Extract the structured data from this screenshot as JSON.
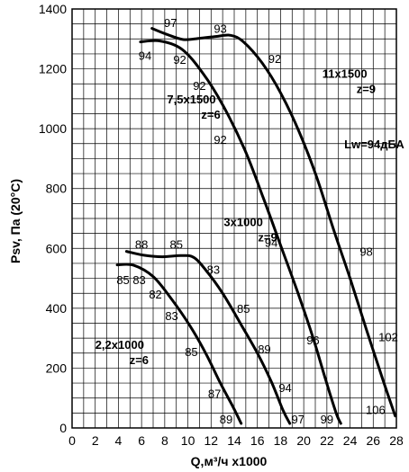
{
  "chart_data": {
    "type": "line",
    "xlabel": "Q,м³/ч x1000",
    "ylabel": "Psv, Па (20°C)",
    "xlim": [
      0,
      28
    ],
    "ylim": [
      0,
      1400
    ],
    "x_ticks": [
      0,
      2,
      4,
      6,
      8,
      10,
      12,
      14,
      16,
      18,
      20,
      22,
      24,
      26,
      28
    ],
    "y_ticks": [
      0,
      200,
      400,
      600,
      800,
      1000,
      1200,
      1400
    ],
    "x_tick_labels": [
      "0",
      "2",
      "4",
      "6",
      "8",
      "10",
      "12",
      "14",
      "16",
      "18",
      "20",
      "22",
      "24",
      "26",
      "28"
    ],
    "y_tick_labels": [
      "0",
      "200",
      "400",
      "600",
      "800",
      "1000",
      "1200",
      "1400"
    ],
    "grid": true,
    "series": [
      {
        "name": "2,2x1000 z=6",
        "label_lines": [
          "2,2x1000",
          "z=6"
        ],
        "label_pos": [
          2.0,
          265
        ],
        "points": [
          [
            3.9,
            545
          ],
          [
            5.3,
            544
          ],
          [
            7.0,
            506
          ],
          [
            8.6,
            430
          ],
          [
            10.2,
            340
          ],
          [
            11.6,
            245
          ],
          [
            12.8,
            150
          ],
          [
            13.9,
            70
          ],
          [
            14.6,
            15
          ]
        ],
        "noise_labels": [
          {
            "text": "85",
            "x": 4.4,
            "y": 495
          },
          {
            "text": "83",
            "x": 5.8,
            "y": 495
          },
          {
            "text": "82",
            "x": 7.2,
            "y": 447
          },
          {
            "text": "83",
            "x": 8.6,
            "y": 375
          },
          {
            "text": "85",
            "x": 10.3,
            "y": 255
          },
          {
            "text": "87",
            "x": 12.3,
            "y": 115
          },
          {
            "text": "89",
            "x": 13.3,
            "y": 30
          }
        ]
      },
      {
        "name": "3x1000 z=9",
        "label_lines": [
          "3x1000",
          "z=9"
        ],
        "label_pos": [
          13.1,
          675
        ],
        "points": [
          [
            4.7,
            590
          ],
          [
            6.2,
            577
          ],
          [
            7.8,
            572
          ],
          [
            9.4,
            576
          ],
          [
            10.5,
            570
          ],
          [
            11.6,
            525
          ],
          [
            13.0,
            450
          ],
          [
            14.6,
            345
          ],
          [
            16.0,
            250
          ],
          [
            17.2,
            155
          ],
          [
            18.2,
            60
          ],
          [
            18.8,
            15
          ]
        ],
        "noise_labels": [
          {
            "text": "88",
            "x": 6.0,
            "y": 615
          },
          {
            "text": "85",
            "x": 9.0,
            "y": 615
          },
          {
            "text": "83",
            "x": 12.2,
            "y": 530
          },
          {
            "text": "85",
            "x": 14.8,
            "y": 400
          },
          {
            "text": "89",
            "x": 16.6,
            "y": 265
          },
          {
            "text": "94",
            "x": 18.4,
            "y": 135
          },
          {
            "text": "97",
            "x": 19.5,
            "y": 30
          }
        ]
      },
      {
        "name": "7,5x1500 z=6",
        "label_lines": [
          "7,5x1500",
          "z=6"
        ],
        "label_pos": [
          8.2,
          1085
        ],
        "points": [
          [
            5.9,
            1290
          ],
          [
            7.6,
            1293
          ],
          [
            9.5,
            1265
          ],
          [
            11.3,
            1185
          ],
          [
            13.0,
            1080
          ],
          [
            14.9,
            930
          ],
          [
            16.5,
            770
          ],
          [
            18.1,
            600
          ],
          [
            19.6,
            440
          ],
          [
            20.9,
            290
          ],
          [
            21.9,
            160
          ],
          [
            22.8,
            50
          ],
          [
            23.2,
            15
          ]
        ],
        "noise_labels": [
          {
            "text": "94",
            "x": 6.3,
            "y": 1245
          },
          {
            "text": "92",
            "x": 9.3,
            "y": 1232
          },
          {
            "text": "92",
            "x": 11.0,
            "y": 1145
          },
          {
            "text": "92",
            "x": 12.8,
            "y": 965
          },
          {
            "text": "94",
            "x": 17.2,
            "y": 620
          },
          {
            "text": "96",
            "x": 20.8,
            "y": 295
          },
          {
            "text": "99",
            "x": 22.0,
            "y": 30
          }
        ]
      },
      {
        "name": "11x1500 z=9",
        "label_lines": [
          "11x1500",
          "z=9"
        ],
        "label_pos": [
          21.6,
          1170
        ],
        "points": [
          [
            6.9,
            1335
          ],
          [
            8.2,
            1315
          ],
          [
            9.6,
            1298
          ],
          [
            11.0,
            1302
          ],
          [
            12.4,
            1308
          ],
          [
            13.7,
            1312
          ],
          [
            14.8,
            1290
          ],
          [
            16.4,
            1220
          ],
          [
            18.0,
            1120
          ],
          [
            19.6,
            990
          ],
          [
            21.1,
            840
          ],
          [
            22.6,
            660
          ],
          [
            24.0,
            500
          ],
          [
            25.4,
            330
          ],
          [
            26.8,
            165
          ],
          [
            27.9,
            40
          ]
        ],
        "noise_labels": [
          {
            "text": "97",
            "x": 8.5,
            "y": 1355
          },
          {
            "text": "93",
            "x": 12.8,
            "y": 1335
          },
          {
            "text": "92",
            "x": 17.5,
            "y": 1235
          },
          {
            "text": "98",
            "x": 25.4,
            "y": 590
          },
          {
            "text": "102",
            "x": 27.3,
            "y": 305
          },
          {
            "text": "106",
            "x": 26.2,
            "y": 62
          }
        ]
      }
    ],
    "annotations": [
      {
        "text": "Lw=94дБА",
        "x": 23.5,
        "y": 935
      }
    ]
  }
}
